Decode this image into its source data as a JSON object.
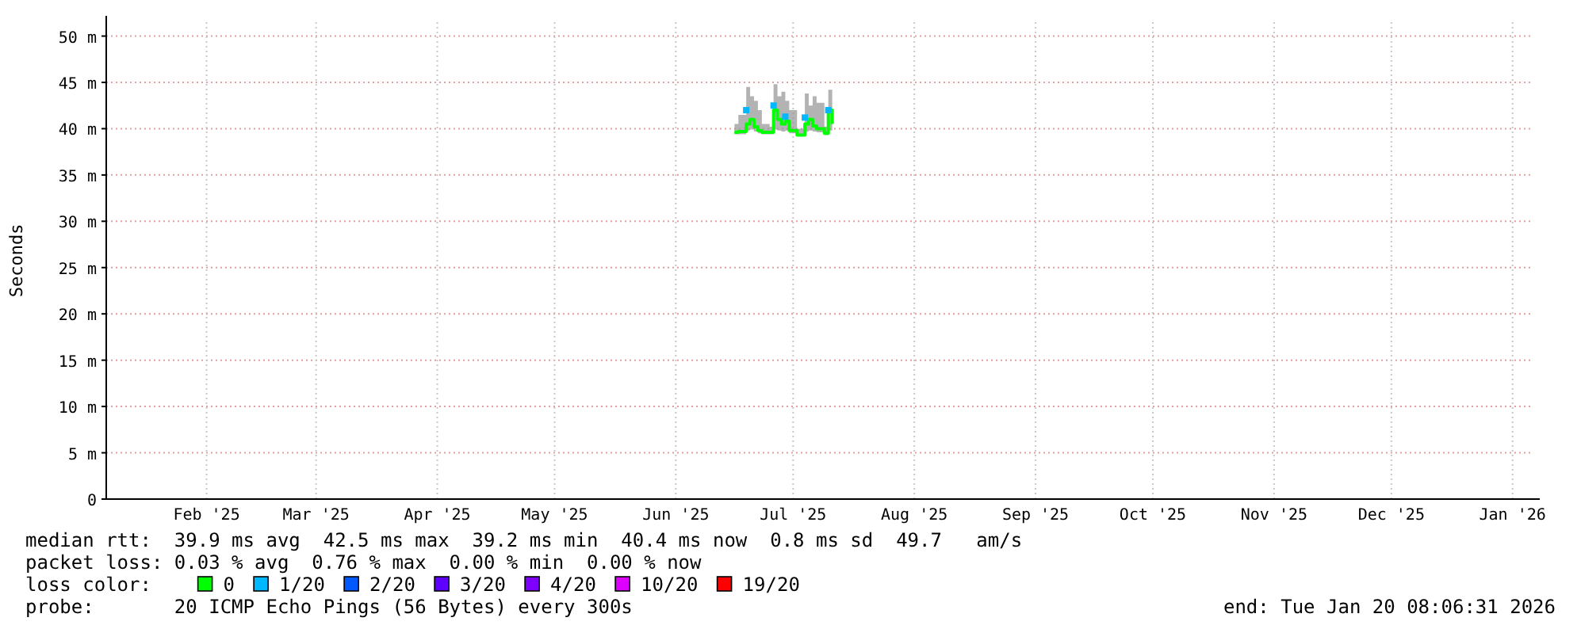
{
  "chart_data": {
    "type": "line",
    "ylabel": "Seconds",
    "legend_title": "loss color:",
    "legend": "bottom",
    "grid": true,
    "xlim": [
      "2025-01-20T08:00",
      "2026-01-20T08:00"
    ],
    "xticks": [
      {
        "value": "2025-02-15",
        "label": "Feb '25"
      },
      {
        "value": "2025-03-15",
        "label": "Mar '25"
      },
      {
        "value": "2025-04-15",
        "label": "Apr '25"
      },
      {
        "value": "2025-05-15",
        "label": "May '25"
      },
      {
        "value": "2025-06-15",
        "label": "Jun '25"
      },
      {
        "value": "2025-07-15",
        "label": "Jul '25"
      },
      {
        "value": "2025-08-15",
        "label": "Aug '25"
      },
      {
        "value": "2025-09-15",
        "label": "Sep '25"
      },
      {
        "value": "2025-10-15",
        "label": "Oct '25"
      },
      {
        "value": "2025-11-15",
        "label": "Nov '25"
      },
      {
        "value": "2025-12-15",
        "label": "Dec '25"
      },
      {
        "value": "2026-01-15",
        "label": "Jan '26"
      }
    ],
    "ylim": [
      0,
      51.5
    ],
    "yticks": [
      0,
      {
        "value": 5,
        "label": "5 m"
      },
      {
        "value": 10,
        "label": "10 m"
      },
      {
        "value": 15,
        "label": "15 m"
      },
      {
        "value": 20,
        "label": "20 m"
      },
      {
        "value": 25,
        "label": "25 m"
      },
      {
        "value": 30,
        "label": "30 m"
      },
      {
        "value": 35,
        "label": "35 m"
      },
      {
        "value": 40,
        "label": "40 m"
      },
      {
        "value": 45,
        "label": "45 m"
      },
      {
        "value": 50,
        "label": "50 m"
      }
    ],
    "series": [
      {
        "name": "0",
        "color": "#00ff00",
        "x": [
          "2025-06-30",
          "2025-07-01",
          "2025-07-03",
          "2025-07-04",
          "2025-07-05",
          "2025-07-06",
          "2025-07-07",
          "2025-07-09",
          "2025-07-10",
          "2025-07-11",
          "2025-07-12",
          "2025-07-13",
          "2025-07-14",
          "2025-07-16",
          "2025-07-18",
          "2025-07-19",
          "2025-07-20",
          "2025-07-21",
          "2025-07-23",
          "2025-07-24",
          "2025-07-25"
        ],
        "values": [
          39.6,
          39.7,
          40.5,
          41,
          40.2,
          39.8,
          39.6,
          39.6,
          42,
          41,
          40.5,
          40.8,
          39.8,
          39.3,
          40.5,
          41,
          40.3,
          40,
          39.5,
          42,
          40.5
        ],
        "lower": [
          39.4,
          39.4,
          39.8,
          39.9,
          39.7,
          39.5,
          39.4,
          39.4,
          39.9,
          39.8,
          39.7,
          39.8,
          39.5,
          39.2,
          39.7,
          39.8,
          39.7,
          39.6,
          39.3,
          39.8,
          39.7
        ],
        "upper": [
          40.5,
          41.5,
          44.5,
          43.5,
          43,
          42,
          40.5,
          40.2,
          44.8,
          43.5,
          44,
          43,
          42,
          40,
          43.8,
          42.5,
          43.5,
          42.8,
          40.2,
          44.2,
          42.5
        ]
      },
      {
        "name": "1/20",
        "type": "scatter",
        "color": "#00b8ff",
        "x": [
          "2025-07-03",
          "2025-07-10",
          "2025-07-13",
          "2025-07-18",
          "2025-07-24"
        ],
        "values": [
          42,
          42.5,
          41.3,
          41.2,
          42
        ]
      },
      {
        "name": "2/20",
        "type": "scatter",
        "color": "#0059ff"
      },
      {
        "name": "3/20",
        "type": "scatter",
        "color": "#5e00ff"
      },
      {
        "name": "4/20",
        "type": "scatter",
        "color": "#7e00ff"
      },
      {
        "name": "10/20",
        "type": "scatter",
        "color": "#dd00ff"
      },
      {
        "name": "19/20",
        "type": "scatter",
        "color": "#ff0000"
      }
    ],
    "annotations": [
      "median rtt:  39.9 ms avg  42.5 ms max  39.2 ms min  40.4 ms now  0.8 ms sd  49.7   am/s",
      "packet loss: 0.03 % avg  0.76 % max  0.00 % min  0.00 % now",
      "probe:       20 ICMP Echo Pings (56 Bytes) every 300s",
      "end: Tue Jan 20 08:06:31 2026"
    ]
  }
}
